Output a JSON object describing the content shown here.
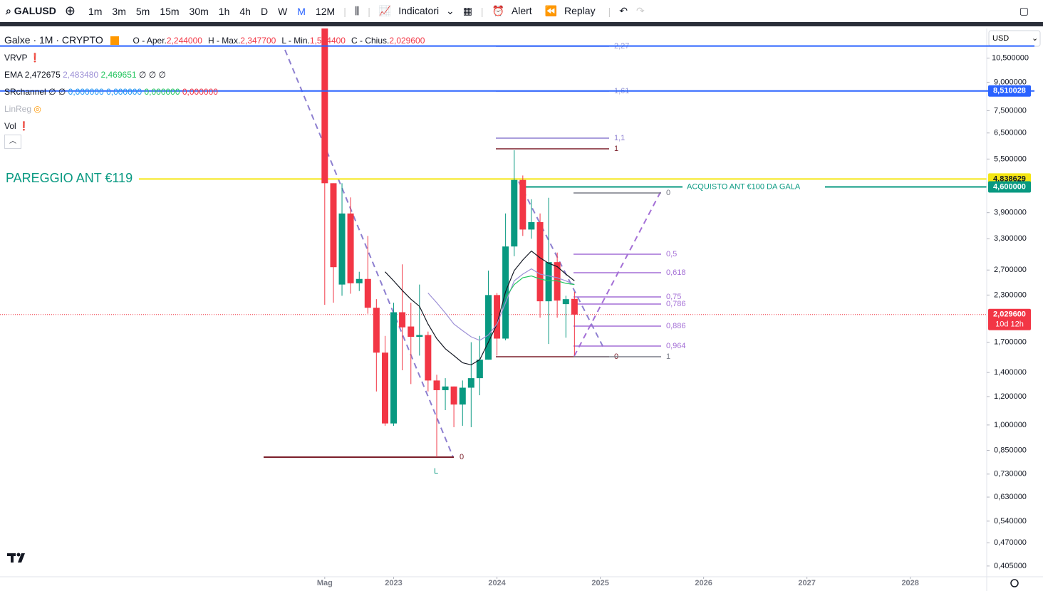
{
  "toolbar": {
    "symbol": "GALUSD",
    "intervals": [
      "1m",
      "3m",
      "5m",
      "15m",
      "30m",
      "1h",
      "4h",
      "D",
      "W",
      "M",
      "12M"
    ],
    "indicators": "Indicatori",
    "alert": "Alert",
    "replay": "Replay"
  },
  "legend": {
    "title": "Galxe · 1M · CRYPTO",
    "ohlc": [
      {
        "label": "O - Aper.",
        "value": "2,244000"
      },
      {
        "label": "H - Max.",
        "value": "2,347700"
      },
      {
        "label": "L - Min.",
        "value": "1,564400"
      },
      {
        "label": "C - Chius.",
        "value": "2,029600"
      }
    ],
    "vrvp": "VRVP",
    "ema": {
      "label": "EMA",
      "values": [
        "2,472675",
        "2,483480",
        "2,469651"
      ],
      "rest": "∅ ∅ ∅"
    },
    "srchannel": {
      "label": "SRchannel",
      "rest": "∅ ∅",
      "values": [
        "0,000000",
        "0,000000",
        "0,000000",
        "0,000000"
      ]
    },
    "linreg": "LinReg",
    "vol": "Vol"
  },
  "currency": "USD",
  "chart_data": {
    "type": "candlestick",
    "log": true,
    "up_color": "#089981",
    "down_color": "#f23645",
    "x": [
      2022.333,
      2022.417,
      2022.5,
      2022.583,
      2022.667,
      2022.75,
      2022.833,
      2022.917,
      2023,
      2023.083,
      2023.167,
      2023.25,
      2023.333,
      2023.417,
      2023.5,
      2023.583,
      2023.667,
      2023.75,
      2023.833,
      2023.917,
      2024,
      2024.083,
      2024.167,
      2024.25,
      2024.333,
      2024.417,
      2024.5,
      2024.583,
      2024.667,
      2024.75
    ],
    "open": [
      15,
      4.71,
      2.46,
      3.88,
      2.48,
      2.55,
      2.12,
      1.59,
      1.01,
      2.06,
      1.88,
      1.76,
      1.78,
      1.33,
      1.25,
      1.28,
      1.14,
      1.27,
      1.35,
      1.52,
      2.3,
      1.74,
      3.14,
      4.81,
      3.5,
      3.67,
      2.21,
      2.84,
      2.17,
      2.244
    ],
    "high": [
      16,
      4.71,
      4.71,
      4.3,
      2.67,
      3.36,
      2.24,
      1.77,
      2.19,
      2.8,
      2.19,
      2.46,
      1.82,
      1.38,
      1.35,
      1.28,
      1.33,
      1.7,
      1.77,
      2.69,
      2.33,
      3.88,
      5.82,
      4.95,
      4.25,
      3.88,
      4.29,
      3.02,
      2.29,
      2.3477
    ],
    "low": [
      2.16,
      2.19,
      2.29,
      2.32,
      2.36,
      2.04,
      1.24,
      0.995,
      0.995,
      1.42,
      1.3,
      1.56,
      1.24,
      0.814,
      1.1,
      0.986,
      0.995,
      0.986,
      1.21,
      1.52,
      1.56,
      1.72,
      2.95,
      3.36,
      3.3,
      1.99,
      1.68,
      1.99,
      1.75,
      1.5644
    ],
    "close": [
      4.71,
      2.75,
      3.88,
      2.48,
      2.55,
      2.12,
      1.59,
      1.01,
      2.06,
      1.87,
      1.76,
      1.78,
      1.33,
      1.25,
      1.28,
      1.14,
      1.27,
      1.35,
      1.52,
      2.3,
      1.74,
      3.14,
      4.81,
      3.5,
      3.67,
      2.21,
      2.84,
      2.22,
      2.24,
      2.0296
    ],
    "overlays": [
      {
        "color": "#131722",
        "values": [
          null,
          null,
          null,
          null,
          null,
          null,
          null,
          2.67,
          2.52,
          2.37,
          2.24,
          2.14,
          1.91,
          1.74,
          1.63,
          1.56,
          1.49,
          1.47,
          1.52,
          1.7,
          1.91,
          2.35,
          2.69,
          2.88,
          3.05,
          2.92,
          2.82,
          2.76,
          2.63,
          2.52
        ]
      },
      {
        "color": "#9c8fd6",
        "values": [
          null,
          null,
          null,
          null,
          null,
          null,
          null,
          null,
          null,
          null,
          null,
          null,
          2.33,
          2.19,
          2.05,
          1.91,
          1.83,
          1.76,
          1.72,
          1.78,
          1.91,
          2.19,
          2.52,
          2.63,
          2.72,
          2.63,
          2.6,
          2.57,
          2.52,
          2.46
        ]
      },
      {
        "color": "#22c55e",
        "values": [
          null,
          null,
          null,
          null,
          null,
          null,
          null,
          null,
          null,
          null,
          null,
          null,
          null,
          null,
          null,
          null,
          null,
          null,
          null,
          null,
          null,
          2.26,
          2.46,
          2.57,
          2.6,
          2.55,
          2.52,
          2.52,
          2.48,
          2.46
        ]
      }
    ],
    "xlim": [
      2019.19,
      2028.74
    ],
    "ylim": [
      0.378,
      12.7
    ],
    "xticks": [
      {
        "value": 2022.333,
        "label": "Mag"
      },
      2023,
      2024,
      2025,
      2026,
      2027,
      2028
    ],
    "yticks": [
      {
        "value": 10.5,
        "label": "10,500000"
      },
      {
        "value": 9,
        "label": "9,000000"
      },
      {
        "value": 7.5,
        "label": "7,500000"
      },
      {
        "value": 6.5,
        "label": "6,500000"
      },
      {
        "value": 5.5,
        "label": "5,500000"
      },
      {
        "value": 3.9,
        "label": "3,900000"
      },
      {
        "value": 3.3,
        "label": "3,300000"
      },
      {
        "value": 2.7,
        "label": "2,700000"
      },
      {
        "value": 2.3,
        "label": "2,300000"
      },
      {
        "value": 1.7,
        "label": "1,700000"
      },
      {
        "value": 1.4,
        "label": "1,400000"
      },
      {
        "value": 1.2,
        "label": "1,200000"
      },
      {
        "value": 1,
        "label": "1,000000"
      },
      {
        "value": 0.85,
        "label": "0,850000"
      },
      {
        "value": 0.73,
        "label": "0,730000"
      },
      {
        "value": 0.63,
        "label": "0,630000"
      },
      {
        "value": 0.54,
        "label": "0,540000"
      },
      {
        "value": 0.47,
        "label": "0,470000"
      },
      {
        "value": 0.405,
        "label": "0,405000"
      }
    ],
    "hlines": [
      {
        "value": 11.35,
        "color": "#2962ff"
      },
      {
        "value": 8.510028,
        "label": "8,510028",
        "color": "#2962ff"
      },
      {
        "value": 4.838629,
        "label": "4,838629",
        "color": "#f5e614",
        "text": "PAREGGIO ANT €119"
      },
      {
        "value": 4.6,
        "label": "4,600000",
        "color": "#089981",
        "text": "ACQUISTO ANT €100  DA GALA"
      },
      {
        "value": 2.0296,
        "label": "2,029600",
        "color": "#f23645",
        "countdown": "10d 12h"
      }
    ],
    "fib_left": [
      "2,27",
      "1,61",
      "1,1",
      "1",
      "0"
    ],
    "fib_right": [
      "0",
      "0,5",
      "0,618",
      "0,75",
      "0,786",
      "0,886",
      "0,964",
      "1"
    ],
    "low_level": "0",
    "low_marker": "L"
  }
}
